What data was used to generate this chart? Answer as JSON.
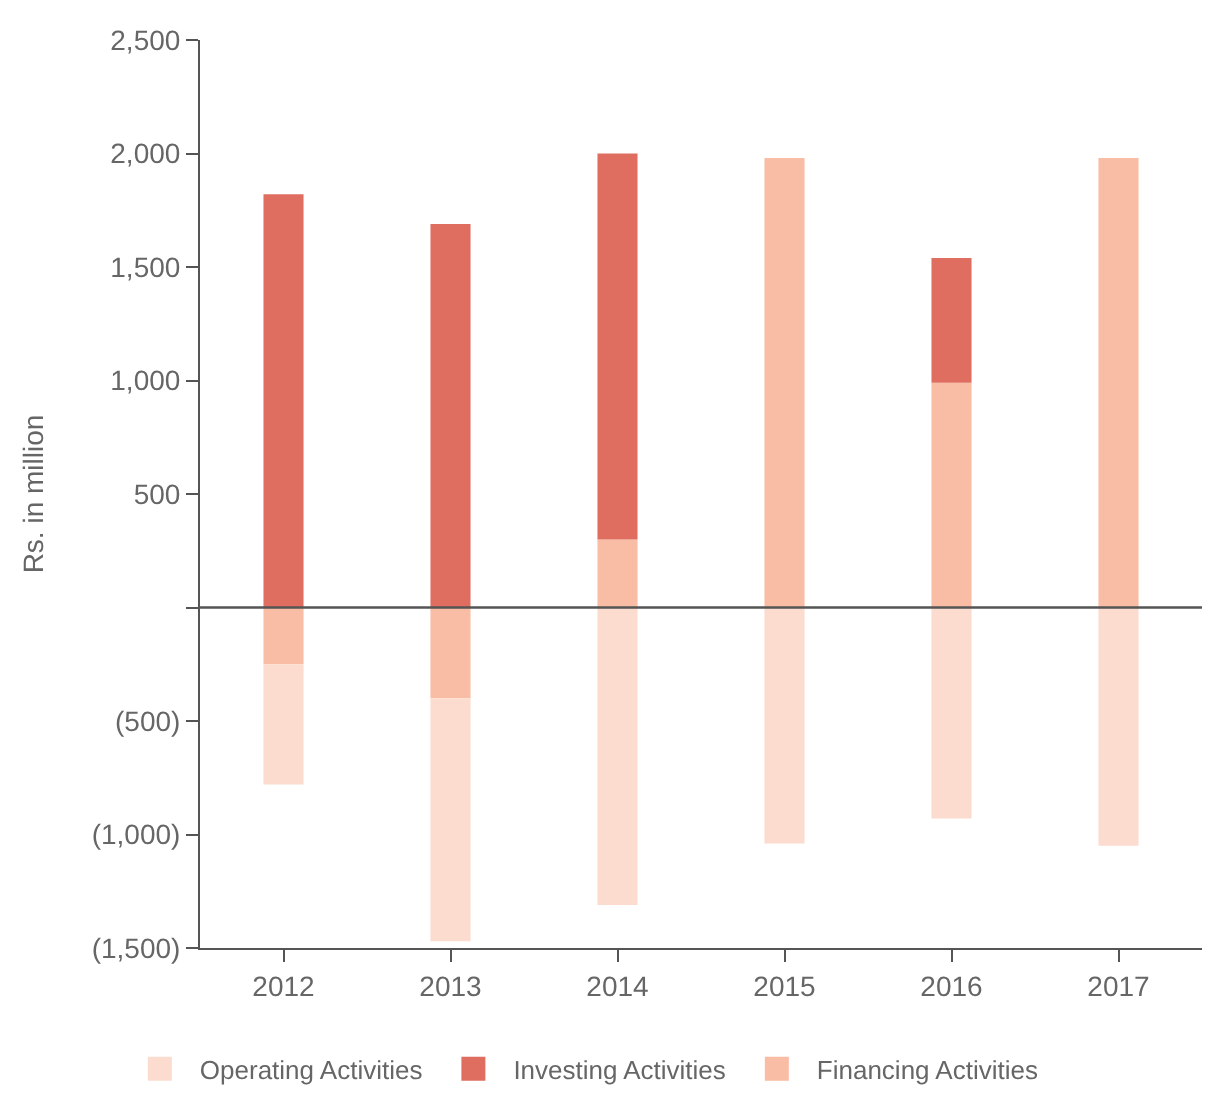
{
  "chart_data": {
    "type": "bar",
    "stacked": true,
    "ylabel": "Rs. in million",
    "categories": [
      "2012",
      "2013",
      "2014",
      "2015",
      "2016",
      "2017"
    ],
    "series": [
      {
        "name": "Financing Activities",
        "color": "#f9bca4",
        "values": [
          -250,
          -400,
          300,
          1980,
          990,
          1980
        ]
      },
      {
        "name": "Investing Activities",
        "color": "#df6e60",
        "values": [
          1820,
          1690,
          1700,
          null,
          550,
          null
        ]
      },
      {
        "name": "Operating Activities",
        "color": "#fcdccf",
        "values": [
          -530,
          -1070,
          -1310,
          -1040,
          -930,
          -1050
        ]
      }
    ],
    "ylim": [
      -1500,
      2500
    ],
    "yticks": [
      {
        "value": -1500,
        "label": "(1,500)"
      },
      {
        "value": -1000,
        "label": "(1,000)"
      },
      {
        "value": -500,
        "label": "(500)"
      },
      {
        "value": 0,
        "label": null
      },
      {
        "value": 500,
        "label": "500"
      },
      {
        "value": 1000,
        "label": "1,000"
      },
      {
        "value": 1500,
        "label": "1,500"
      },
      {
        "value": 2000,
        "label": "2,000"
      },
      {
        "value": 2500,
        "label": "2,500"
      }
    ],
    "ref_lines": [
      {
        "axis": "y",
        "value": 0,
        "color": "#555555"
      }
    ],
    "grid": false,
    "legend": "bottom"
  }
}
